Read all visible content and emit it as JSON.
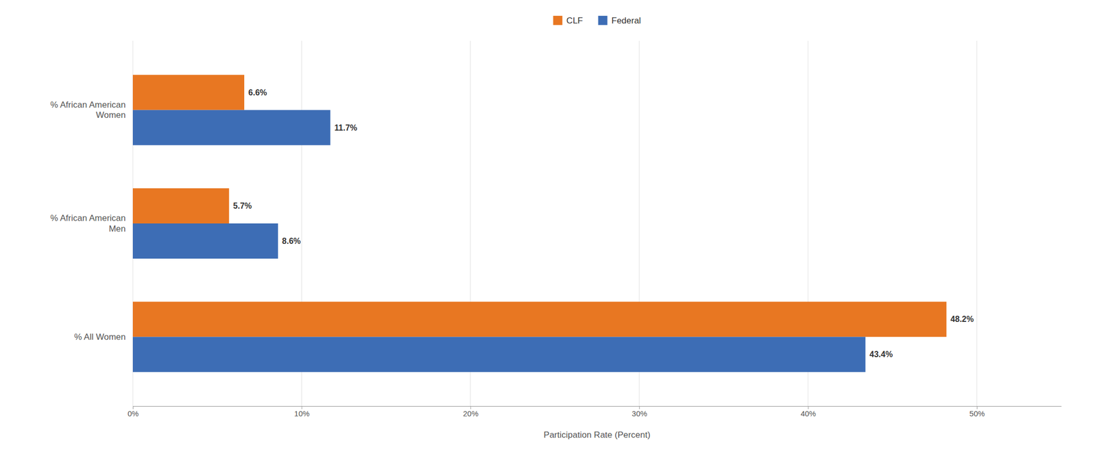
{
  "chart_data": {
    "type": "bar",
    "orientation": "horizontal",
    "categories": [
      "% All Women",
      "% African American\nMen",
      "% African American\nWomen"
    ],
    "series": [
      {
        "name": "CLF",
        "color": "#E87722",
        "values": [
          48.2,
          5.7,
          6.6
        ],
        "value_labels": [
          "48.2%",
          "5.7%",
          "6.6%"
        ]
      },
      {
        "name": "Federal",
        "color": "#3D6DB5",
        "values": [
          43.4,
          8.6,
          11.7
        ],
        "value_labels": [
          "43.4%",
          "8.6%",
          "11.7%"
        ]
      }
    ],
    "x_label": "Participation Rate (Percent)",
    "xlim": [
      0,
      55
    ],
    "xticks": [
      {
        "value": 0,
        "label": "0%"
      },
      {
        "value": 10,
        "label": "10%"
      },
      {
        "value": 20,
        "label": "20%"
      },
      {
        "value": 30,
        "label": "30%"
      },
      {
        "value": 40,
        "label": "40%"
      },
      {
        "value": 50,
        "label": "50%"
      }
    ],
    "grid": true,
    "legend": "top",
    "data_labels": true
  }
}
